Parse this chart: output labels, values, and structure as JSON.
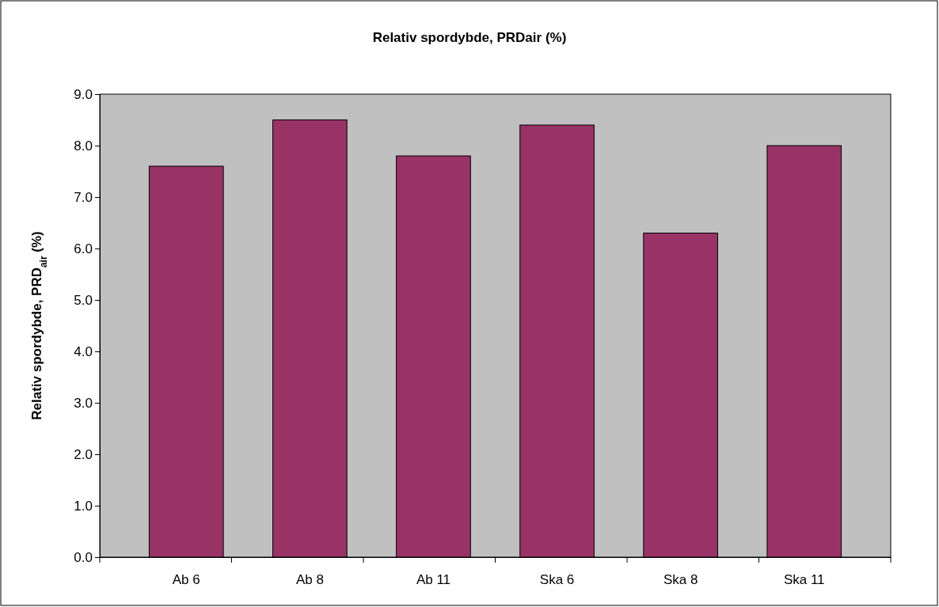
{
  "chart_data": {
    "type": "bar",
    "title": "Relativ spordybde, PRDair (%)",
    "ylabel": "Relativ spordybde, PRD$_{air}$ (%)",
    "categories": [
      "Ab 6",
      "Ab 8",
      "Ab 11",
      "Ska 6",
      "Ska 8",
      "Ska 11"
    ],
    "values": [
      7.6,
      8.5,
      7.8,
      8.4,
      6.3,
      8.0
    ],
    "color": "#993366",
    "ylim": [
      0,
      9
    ],
    "yticks": [
      {
        "value": 0,
        "label": "0.0"
      },
      {
        "value": 1,
        "label": "1.0"
      },
      {
        "value": 2,
        "label": "2.0"
      },
      {
        "value": 3,
        "label": "3.0"
      },
      {
        "value": 4,
        "label": "4.0"
      },
      {
        "value": 5,
        "label": "5.0"
      },
      {
        "value": 6,
        "label": "6.0"
      },
      {
        "value": 7,
        "label": "7.0"
      },
      {
        "value": 8,
        "label": "8.0"
      },
      {
        "value": 9,
        "label": "9.0"
      }
    ],
    "grid": false
  }
}
